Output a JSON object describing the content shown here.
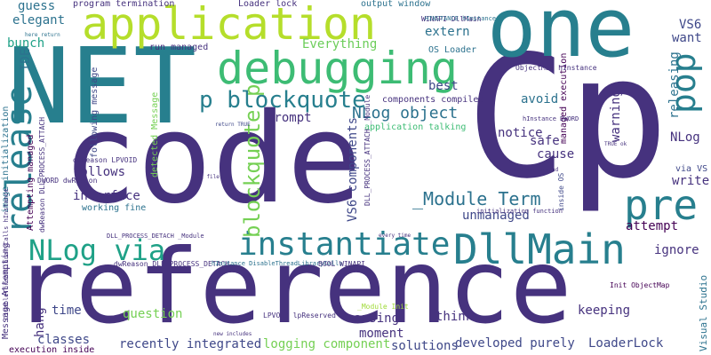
{
  "word_cloud": {
    "background": "#ffffff",
    "palette": [
      "#440154",
      "#46327e",
      "#365c8d",
      "#277f8e",
      "#1fa187",
      "#4ac16d",
      "#a0da39",
      "#fde725"
    ],
    "words": [
      {
        "text": "reference",
        "color": "#46327e"
      },
      {
        "text": "code",
        "color": "#46327e"
      },
      {
        "text": "Cp",
        "color": "#46327e"
      },
      {
        "text": "one",
        "color": "#277f8e"
      },
      {
        "text": "NET",
        "color": "#277f8e"
      },
      {
        "text": "application",
        "color": "#b5de2b"
      },
      {
        "text": "debugging",
        "color": "#3dbc74"
      },
      {
        "text": "DllMain",
        "color": "#277f8e"
      },
      {
        "text": "instantiate",
        "color": "#277f8e"
      },
      {
        "text": "pre",
        "color": "#277f8e"
      },
      {
        "text": "release",
        "color": "#277f8e"
      },
      {
        "text": "NLog via",
        "color": "#1fa187"
      },
      {
        "text": "pop",
        "color": "#277f8e"
      },
      {
        "text": "p blockquote",
        "color": "#277f8e"
      },
      {
        "text": "blockquote p",
        "color": "#75d054"
      },
      {
        "text": "NLog object",
        "color": "#2c728e"
      },
      {
        "text": "_Module Term",
        "color": "#2c728e"
      },
      {
        "text": "VS6 components",
        "color": "#3f4889"
      },
      {
        "text": "IDE",
        "color": "#2c728e"
      },
      {
        "text": "elegant",
        "color": "#2c728e"
      },
      {
        "text": "guess",
        "color": "#2c728e"
      },
      {
        "text": "bunch",
        "color": "#1fa187"
      },
      {
        "text": "Everything",
        "color": "#6ccd5a"
      },
      {
        "text": "extern",
        "color": "#2c728e"
      },
      {
        "text": "best",
        "color": "#3f4889"
      },
      {
        "text": "VS6",
        "color": "#3f4889"
      },
      {
        "text": "want",
        "color": "#3f4889"
      },
      {
        "text": "avoid",
        "color": "#2c728e"
      },
      {
        "text": "prompt",
        "color": "#46327e"
      },
      {
        "text": "notice",
        "color": "#46327e"
      },
      {
        "text": "safe",
        "color": "#46327e"
      },
      {
        "text": "cause",
        "color": "#46327e"
      },
      {
        "text": "warning",
        "color": "#46327e"
      },
      {
        "text": "NLog",
        "color": "#46327e"
      },
      {
        "text": "releasing",
        "color": "#2c728e"
      },
      {
        "text": "follows",
        "color": "#46327e"
      },
      {
        "text": "interface",
        "color": "#46327e"
      },
      {
        "text": "working fine",
        "color": "#2c728e"
      },
      {
        "text": "write",
        "color": "#46327e"
      },
      {
        "text": "attempt",
        "color": "#440154"
      },
      {
        "text": "ignore",
        "color": "#46327e"
      },
      {
        "text": "unmanaged",
        "color": "#3f4889"
      },
      {
        "text": "keeping",
        "color": "#46327e"
      },
      {
        "text": "think",
        "color": "#46327e"
      },
      {
        "text": "moment",
        "color": "#46327e"
      },
      {
        "text": "causing",
        "color": "#46327e"
      },
      {
        "text": "question",
        "color": "#75d054"
      },
      {
        "text": "time",
        "color": "#3f4889"
      },
      {
        "text": "classes",
        "color": "#3f4889"
      },
      {
        "text": "hang",
        "color": "#46327e"
      },
      {
        "text": "recently integrated",
        "color": "#3f4889"
      },
      {
        "text": "logging component",
        "color": "#75d054"
      },
      {
        "text": "solutions",
        "color": "#3f4889"
      },
      {
        "text": "developed purely",
        "color": "#3f4889"
      },
      {
        "text": "LoaderLock",
        "color": "#3f4889"
      },
      {
        "text": "Visual Studio",
        "color": "#2c728e"
      },
      {
        "text": "components compiled",
        "color": "#46327e"
      },
      {
        "text": "application talking",
        "color": "#3dbc74"
      },
      {
        "text": "Loader lock",
        "color": "#46327e"
      },
      {
        "text": "program termination",
        "color": "#46327e"
      },
      {
        "text": "output window",
        "color": "#2c728e"
      },
      {
        "text": "WINAPI DllMain",
        "color": "#46327e"
      },
      {
        "text": "run managed",
        "color": "#46327e"
      },
      {
        "text": "OS Loader",
        "color": "#2c728e"
      },
      {
        "text": "following message",
        "color": "#3f4889"
      },
      {
        "text": "detected Message",
        "color": "#75d054"
      },
      {
        "text": "Message Attempting",
        "color": "#46327e"
      },
      {
        "text": "image initialization",
        "color": "#2c728e"
      },
      {
        "text": "Attempting managed",
        "color": "#440154"
      },
      {
        "text": "managed execution",
        "color": "#440154"
      },
      {
        "text": "execution inside",
        "color": "#440154"
      },
      {
        "text": "inside OS",
        "color": "#3f4889"
      },
      {
        "text": "via VS",
        "color": "#3f4889"
      },
      {
        "text": "LPVOID lpReserved",
        "color": "#46327e"
      },
      {
        "text": "_Module Init",
        "color": "#a0da39"
      },
      {
        "text": "Init ObjectMap",
        "color": "#440154"
      },
      {
        "text": "dwReason LPVOID",
        "color": "#46327e"
      },
      {
        "text": "DWORD dwReason",
        "color": "#46327e"
      },
      {
        "text": "dwReason DLL_PROCESS_ATTACH",
        "color": "#46327e"
      },
      {
        "text": "DLL_PROCESS_ATTACH _Module",
        "color": "#46327e"
      },
      {
        "text": "dwReason DLL_PROCESS_DETACH",
        "color": "#46327e"
      },
      {
        "text": "DLL_PROCESS_DETACH _Module",
        "color": "#46327e"
      },
      {
        "text": "DisableThreadLibraryCalls hInstance",
        "color": "#46327e"
      },
      {
        "text": "hInstance DisableThreadLibraryCalls",
        "color": "#2c728e"
      },
      {
        "text": "BOOL WINAPI",
        "color": "#46327e"
      },
      {
        "text": "HINSTANCE hInstance",
        "color": "#2c728e"
      },
      {
        "text": "ObjectMap hInstance",
        "color": "#46327e"
      },
      {
        "text": "hInstance DWORD",
        "color": "#46327e"
      },
      {
        "text": "initialization function",
        "color": "#46327e"
      },
      {
        "text": "every time",
        "color": "#46327e"
      },
      {
        "text": "good workaround",
        "color": "#46327e"
      },
      {
        "text": "log file",
        "color": "#46327e"
      },
      {
        "text": "new includes",
        "color": "#46327e"
      },
      {
        "text": "return TRUE",
        "color": "#3f4889"
      },
      {
        "text": "TRUE ok",
        "color": "#46327e"
      },
      {
        "text": "here return",
        "color": "#2c728e"
      }
    ]
  }
}
